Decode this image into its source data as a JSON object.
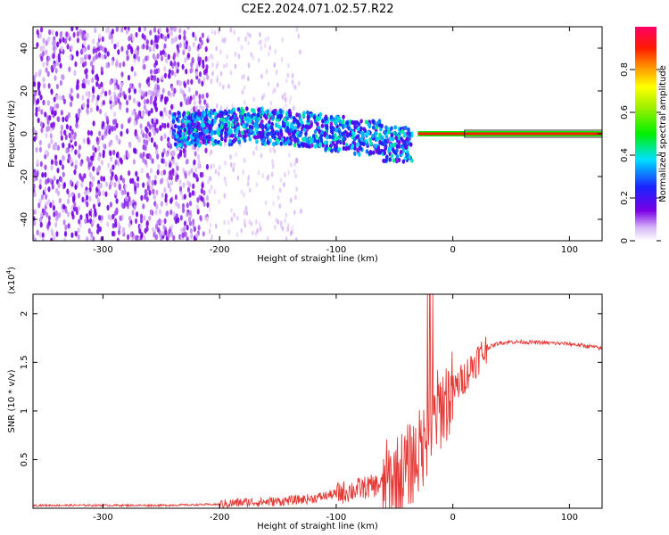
{
  "title": "C2E2.2024.071.02.57.R22",
  "chart_data": [
    {
      "type": "heatmap",
      "xlabel": "Height of straight line (km)",
      "ylabel": "Frequency (Hz)",
      "xlim": [
        -360,
        128
      ],
      "ylim": [
        -50,
        50
      ],
      "x_ticks": [
        -300,
        -200,
        -100,
        0,
        100
      ],
      "y_ticks": [
        -40,
        -20,
        0,
        20,
        40
      ],
      "colorbar": {
        "label": "Normalized spectral amplitude",
        "range": [
          0.0,
          1.0
        ],
        "ticks": [
          0.0,
          0.2,
          0.4,
          0.6,
          0.8
        ],
        "colormap": "rainbow (white-violet-blue-cyan-green-yellow-red-magenta)"
      },
      "regions": [
        {
          "x_range": [
            -360,
            -215
          ],
          "description_value": "noise",
          "amplitude": 0.05
        },
        {
          "x_range": [
            -215,
            -35
          ],
          "center_freq_hz": [
            2,
            3,
            4,
            3,
            2,
            0,
            -2,
            -5
          ],
          "amplitude": 0.3
        },
        {
          "x_range": [
            -30,
            128
          ],
          "center_freq_hz": 0,
          "amplitude": 0.9
        }
      ],
      "grid": false
    },
    {
      "type": "line",
      "xlabel": "Height of straight line (km)",
      "ylabel": "SNR (10 * v/v)",
      "y_multiplier_label": "(x10",
      "y_multiplier_exp": "4",
      "y_multiplier_close": ")",
      "xlim": [
        -360,
        128
      ],
      "ylim": [
        0,
        2.2
      ],
      "x_ticks": [
        -300,
        -200,
        -100,
        0,
        100
      ],
      "y_ticks": [
        0.5,
        1.0,
        1.5,
        2.0
      ],
      "line_color": "#e53935",
      "series": [
        {
          "x": [
            -360,
            -300,
            -250,
            -200,
            -180,
            -150,
            -120,
            -100,
            -80,
            -60,
            -50,
            -40,
            -30,
            -25,
            -20,
            -15,
            -10,
            -5,
            0,
            10,
            20,
            30,
            40,
            50,
            60,
            80,
            100,
            120,
            128
          ],
          "values": [
            0.03,
            0.03,
            0.03,
            0.04,
            0.06,
            0.07,
            0.1,
            0.15,
            0.2,
            0.25,
            0.3,
            0.4,
            0.55,
            0.65,
            0.8,
            0.95,
            1.05,
            1.12,
            1.2,
            1.35,
            1.52,
            1.65,
            1.7,
            1.71,
            1.71,
            1.7,
            1.69,
            1.66,
            1.64
          ]
        }
      ],
      "grid": false
    }
  ]
}
